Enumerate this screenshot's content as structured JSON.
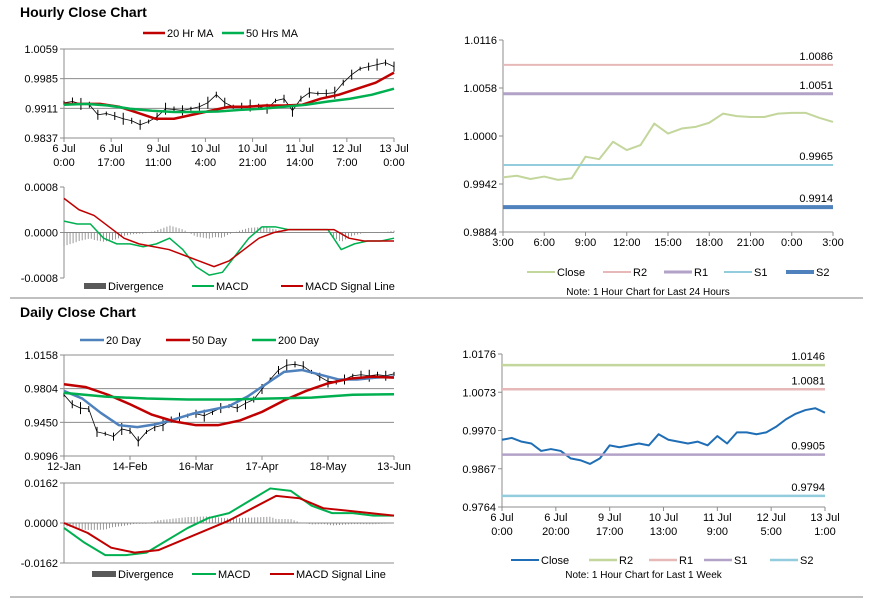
{
  "sections": {
    "hourly_title": "Hourly Close Chart",
    "daily_title": "Daily Close Chart"
  },
  "chart_data": [
    {
      "id": "hourly_price",
      "type": "line",
      "title": "Hourly Close Chart",
      "yticks": [
        "1.0059",
        "0.9985",
        "0.9911",
        "0.9837"
      ],
      "ylim": [
        0.9837,
        1.0059
      ],
      "xticks": [
        [
          "6 Jul",
          "0:00"
        ],
        [
          "6 Jul",
          "17:00"
        ],
        [
          "9 Jul",
          "11:00"
        ],
        [
          "10 Jul",
          "4:00"
        ],
        [
          "10 Jul",
          "21:00"
        ],
        [
          "11 Jul",
          "14:00"
        ],
        [
          "12 Jul",
          "7:00"
        ],
        [
          "13 Jul",
          "0:00"
        ]
      ],
      "series": [
        {
          "name": "Close",
          "style": "ticks",
          "color": "#000000",
          "legend": false,
          "values": [
            0.9925,
            0.9928,
            0.9922,
            0.992,
            0.9895,
            0.9898,
            0.9892,
            0.9885,
            0.988,
            0.987,
            0.9878,
            0.989,
            0.991,
            0.9908,
            0.9906,
            0.991,
            0.9915,
            0.9925,
            0.9945,
            0.9925,
            0.9915,
            0.9915,
            0.9918,
            0.9915,
            0.991,
            0.993,
            0.9935,
            0.9905,
            0.9935,
            0.995,
            0.9948,
            0.9948,
            0.995,
            0.9975,
            0.9995,
            1.001,
            1.0015,
            1.002,
            1.0025,
            1.0015
          ]
        },
        {
          "name": "20 Hr MA",
          "style": "line",
          "color": "#c00000",
          "width": 2.5,
          "legend": true,
          "values": [
            0.9922,
            0.9922,
            0.9922,
            0.9915,
            0.99,
            0.9885,
            0.9885,
            0.9895,
            0.9905,
            0.9915,
            0.9915,
            0.9918,
            0.9918,
            0.992,
            0.9935,
            0.9945,
            0.996,
            0.9975,
            1.0
          ]
        },
        {
          "name": "50 Hrs MA",
          "style": "line",
          "color": "#00b050",
          "width": 2.5,
          "legend": true,
          "values": [
            0.992,
            0.9922,
            0.9918,
            0.991,
            0.9905,
            0.9902,
            0.9902,
            0.9903,
            0.9907,
            0.991,
            0.9915,
            0.992,
            0.9928,
            0.9935,
            0.9945,
            0.996
          ]
        }
      ]
    },
    {
      "id": "hourly_macd",
      "type": "line",
      "yticks": [
        "0.0008",
        "0.0000",
        "-0.0008"
      ],
      "ylim": [
        -0.0008,
        0.0008
      ],
      "series": [
        {
          "name": "Divergence",
          "style": "divergence",
          "color": "#808080",
          "legend": true,
          "of": [
            "MACD",
            "MACD Signal Line"
          ]
        },
        {
          "name": "MACD",
          "style": "line",
          "color": "#00b050",
          "width": 1.5,
          "legend": true,
          "values": [
            0.0002,
            0.00015,
            0.00015,
            -0.0001,
            -0.0002,
            -0.0002,
            -0.00025,
            -0.0002,
            -0.0001,
            -0.0003,
            -0.0006,
            -0.00075,
            -0.0007,
            -0.0004,
            -0.0001,
            0.0001,
            0.0001,
            5e-05,
            5e-05,
            5e-05,
            5e-05,
            -0.0003,
            -0.0002,
            -0.00015,
            -0.00015,
            -0.0001
          ]
        },
        {
          "name": "MACD Signal Line",
          "style": "line",
          "color": "#c00000",
          "width": 1.5,
          "legend": true,
          "values": [
            0.0006,
            0.0004,
            0.0003,
            0.0001,
            -0.0001,
            -0.0002,
            -0.00025,
            -0.0003,
            -0.0004,
            -0.0005,
            -0.0006,
            -0.0005,
            -0.0003,
            -0.0001,
            0.0,
            5e-05,
            5e-05,
            5e-05,
            5e-05,
            -0.0001,
            -0.00015,
            -0.00015,
            -0.00015
          ]
        }
      ]
    },
    {
      "id": "hourly_levels",
      "type": "line",
      "yticks": [
        "1.0116",
        "1.0058",
        "1.0000",
        "0.9942",
        "0.9884"
      ],
      "ylim": [
        0.9884,
        1.0116
      ],
      "xticks": [
        [
          "3:00"
        ],
        [
          "6:00"
        ],
        [
          "9:00"
        ],
        [
          "12:00"
        ],
        [
          "15:00"
        ],
        [
          "18:00"
        ],
        [
          "21:00"
        ],
        [
          "0:00"
        ],
        [
          "3:00"
        ]
      ],
      "note": "Note: 1 Hour Chart for Last 24 Hours",
      "series": [
        {
          "name": "Close",
          "style": "line",
          "color": "#c3d69b",
          "width": 2,
          "legend": true,
          "values": [
            0.995,
            0.9952,
            0.9948,
            0.9951,
            0.9947,
            0.9949,
            0.9975,
            0.9972,
            0.9993,
            0.9983,
            0.9989,
            1.0015,
            1.0003,
            1.0009,
            1.0011,
            1.0016,
            1.0027,
            1.0024,
            1.0023,
            1.0023,
            1.0027,
            1.0028,
            1.0028,
            1.0022,
            1.0017
          ]
        },
        {
          "name": "R2",
          "style": "level",
          "color": "#e6b9b8",
          "width": 2,
          "legend": true,
          "level": 1.0086,
          "label": "1.0086"
        },
        {
          "name": "R1",
          "style": "level",
          "color": "#b3a2c7",
          "width": 3,
          "legend": true,
          "level": 1.0051,
          "label": "1.0051"
        },
        {
          "name": "S1",
          "style": "level",
          "color": "#93cddd",
          "width": 2,
          "legend": true,
          "level": 0.9965,
          "label": "0.9965"
        },
        {
          "name": "S2",
          "style": "level",
          "color": "#4f81bd",
          "width": 4,
          "legend": true,
          "level": 0.9914,
          "label": "0.9914"
        }
      ]
    },
    {
      "id": "daily_price",
      "type": "line",
      "title": "Daily Close Chart",
      "yticks": [
        "1.0158",
        "0.9804",
        "0.9450",
        "0.9096"
      ],
      "ylim": [
        0.9096,
        1.0158
      ],
      "xticks": [
        [
          "12-Jan"
        ],
        [
          "14-Feb"
        ],
        [
          "16-Mar"
        ],
        [
          "17-Apr"
        ],
        [
          "18-May"
        ],
        [
          "13-Jun"
        ]
      ],
      "series": [
        {
          "name": "Close",
          "style": "ticks",
          "color": "#000000",
          "legend": false,
          "values": [
            0.974,
            0.964,
            0.96,
            0.959,
            0.935,
            0.933,
            0.93,
            0.938,
            0.936,
            0.925,
            0.935,
            0.94,
            0.942,
            0.948,
            0.95,
            0.952,
            0.954,
            0.952,
            0.956,
            0.96,
            0.962,
            0.96,
            0.965,
            0.969,
            0.98,
            0.99,
            1.0,
            1.005,
            1.006,
            1.004,
            0.998,
            0.993,
            0.988,
            0.988,
            0.99,
            0.994,
            0.995,
            0.994,
            0.995,
            0.994,
            0.996
          ]
        },
        {
          "name": "20 Day",
          "style": "line",
          "color": "#4f81bd",
          "width": 2.5,
          "legend": true,
          "values": [
            0.978,
            0.97,
            0.955,
            0.942,
            0.94,
            0.943,
            0.948,
            0.954,
            0.958,
            0.962,
            0.972,
            0.985,
            0.998,
            1.0,
            0.995,
            0.99,
            0.99,
            0.992,
            0.993
          ]
        },
        {
          "name": "50 Day",
          "style": "line",
          "color": "#c00000",
          "width": 2.5,
          "legend": true,
          "values": [
            0.985,
            0.982,
            0.974,
            0.964,
            0.953,
            0.946,
            0.942,
            0.942,
            0.947,
            0.956,
            0.968,
            0.978,
            0.986,
            0.991,
            0.993,
            0.992
          ]
        },
        {
          "name": "200 Day",
          "style": "line",
          "color": "#00b050",
          "width": 2.5,
          "legend": true,
          "values": [
            0.976,
            0.972,
            0.97,
            0.969,
            0.969,
            0.97,
            0.971,
            0.974,
            0.9745
          ]
        }
      ]
    },
    {
      "id": "daily_macd",
      "type": "line",
      "yticks": [
        "0.0162",
        "0.0000",
        "-0.0162"
      ],
      "ylim": [
        -0.0162,
        0.0162
      ],
      "series": [
        {
          "name": "Divergence",
          "style": "divergence",
          "color": "#808080",
          "legend": true,
          "of": [
            "MACD",
            "MACD Signal Line"
          ]
        },
        {
          "name": "MACD",
          "style": "line",
          "color": "#00b050",
          "width": 2,
          "legend": true,
          "values": [
            -0.002,
            -0.008,
            -0.013,
            -0.013,
            -0.012,
            -0.007,
            -0.002,
            0.002,
            0.004,
            0.009,
            0.014,
            0.013,
            0.007,
            0.004,
            0.004,
            0.003,
            0.003
          ]
        },
        {
          "name": "MACD Signal Line",
          "style": "line",
          "color": "#c00000",
          "width": 2,
          "legend": true,
          "values": [
            0.0,
            -0.004,
            -0.01,
            -0.012,
            -0.011,
            -0.007,
            -0.003,
            0.001,
            0.006,
            0.011,
            0.01,
            0.006,
            0.005,
            0.004,
            0.003
          ]
        }
      ]
    },
    {
      "id": "weekly_levels",
      "type": "line",
      "yticks": [
        "1.0176",
        "1.0073",
        "0.9970",
        "0.9867",
        "0.9764"
      ],
      "ylim": [
        0.9764,
        1.0176
      ],
      "xticks": [
        [
          "6 Jul",
          "0:00"
        ],
        [
          "6 Jul",
          "20:00"
        ],
        [
          "9 Jul",
          "17:00"
        ],
        [
          "10 Jul",
          "13:00"
        ],
        [
          "11 Jul",
          "9:00"
        ],
        [
          "12 Jul",
          "5:00"
        ],
        [
          "13 Jul",
          "1:00"
        ]
      ],
      "note": "Note: 1 Hour Chart for Last 1 Week",
      "series": [
        {
          "name": "Close",
          "style": "line",
          "color": "#1f6eb5",
          "width": 2,
          "legend": true,
          "values": [
            0.9945,
            0.995,
            0.994,
            0.9935,
            0.9915,
            0.992,
            0.9915,
            0.9895,
            0.989,
            0.988,
            0.9895,
            0.993,
            0.9925,
            0.993,
            0.9935,
            0.993,
            0.996,
            0.9945,
            0.994,
            0.9935,
            0.994,
            0.993,
            0.9955,
            0.9935,
            0.9965,
            0.9965,
            0.996,
            0.9965,
            0.998,
            1.0,
            1.0015,
            1.0025,
            1.003,
            1.0018
          ]
        },
        {
          "name": "R2",
          "style": "level",
          "color": "#c3d69b",
          "width": 2.5,
          "legend": true,
          "level": 1.0146,
          "label": "1.0146"
        },
        {
          "name": "R1",
          "style": "level",
          "color": "#e6b9b8",
          "width": 2.5,
          "legend": true,
          "level": 1.0081,
          "label": "1.0081"
        },
        {
          "name": "S1",
          "style": "level",
          "color": "#b3a2c7",
          "width": 2.5,
          "legend": true,
          "level": 0.9905,
          "label": "0.9905"
        },
        {
          "name": "S2",
          "style": "level",
          "color": "#93cddd",
          "width": 2.5,
          "legend": true,
          "level": 0.9794,
          "label": "0.9794"
        }
      ]
    }
  ]
}
